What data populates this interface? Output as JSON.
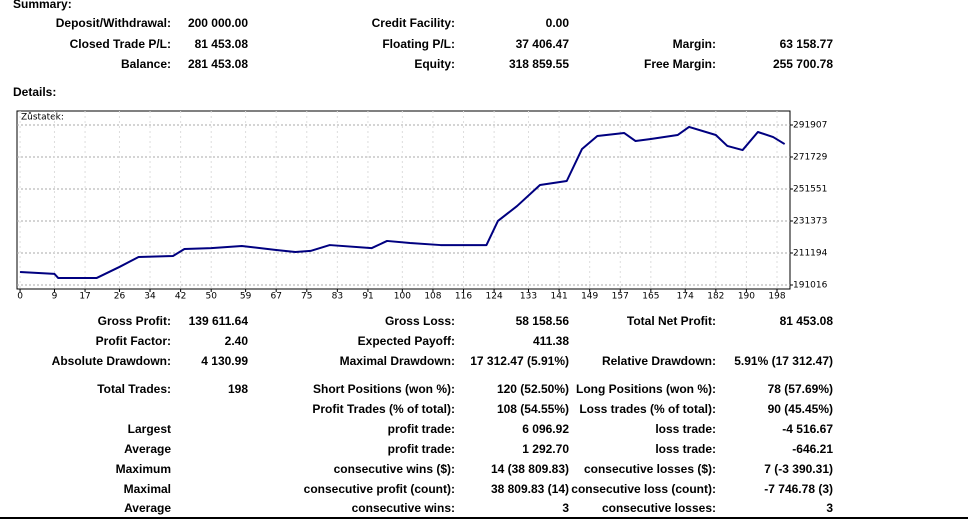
{
  "summary": {
    "title": "Summary:",
    "rows": [
      {
        "a": [
          "Deposit/Withdrawal:",
          "200 000.00"
        ],
        "b": [
          "Credit Facility:",
          "0.00"
        ]
      },
      {
        "a": [
          "Closed Trade P/L:",
          "81 453.08"
        ],
        "b": [
          "Floating P/L:",
          "37 406.47"
        ],
        "c": [
          "Margin:",
          "63 158.77"
        ]
      },
      {
        "a": [
          "Balance:",
          "281 453.08"
        ],
        "b": [
          "Equity:",
          "318 859.55"
        ],
        "c": [
          "Free Margin:",
          "255 700.78"
        ]
      }
    ]
  },
  "details": {
    "title": "Details:"
  },
  "chart_data": {
    "type": "line",
    "title": "Zůstatek:",
    "x": [
      0,
      9,
      10,
      20,
      26,
      31,
      40,
      43,
      50,
      58,
      67,
      72,
      76,
      81,
      92,
      96,
      102,
      110,
      122,
      125,
      130,
      136,
      143,
      147,
      151,
      158,
      161,
      165,
      172,
      175,
      182,
      185,
      189,
      193,
      197,
      200
    ],
    "series": [
      {
        "color": "#000080",
        "values": [
          199200,
          198000,
          195400,
          195400,
          202400,
          208700,
          209300,
          213700,
          214300,
          215600,
          213100,
          211800,
          212500,
          216200,
          214300,
          218800,
          217500,
          216200,
          216200,
          231400,
          240800,
          254100,
          256600,
          276800,
          285000,
          286900,
          281800,
          283100,
          285600,
          290700,
          285600,
          278700,
          276100,
          287500,
          284300,
          279900
        ]
      }
    ],
    "xlim": [
      -0.8,
      201.4
    ],
    "xticks": [
      0,
      9,
      17,
      26,
      34,
      42,
      50,
      59,
      67,
      75,
      83,
      91,
      100,
      108,
      116,
      124,
      133,
      141,
      149,
      157,
      165,
      174,
      182,
      190,
      198
    ],
    "ylim": [
      188494,
      300740
    ],
    "yticks": [
      191016,
      211194,
      231373,
      251551,
      271729,
      291907
    ],
    "grid": true
  },
  "stats": {
    "rows": [
      {
        "a": [
          "Gross Profit:",
          "139 611.64"
        ],
        "b": [
          "Gross Loss:",
          "58 158.56"
        ],
        "c": [
          "Total Net Profit:",
          "81 453.08"
        ]
      },
      {
        "a": [
          "Profit Factor:",
          "2.40"
        ],
        "b": [
          "Expected Payoff:",
          "411.38"
        ]
      },
      {
        "a": [
          "Absolute Drawdown:",
          "4 130.99"
        ],
        "b": [
          "Maximal Drawdown:",
          "17 312.47 (5.91%)"
        ],
        "c": [
          "Relative Drawdown:",
          "5.91% (17 312.47)"
        ]
      },
      {
        "a": [
          "Total Trades:",
          "198"
        ],
        "b": [
          "Short Positions (won %):",
          "120 (52.50%)"
        ],
        "c": [
          "Long Positions (won %):",
          "78 (57.69%)"
        ]
      },
      {
        "b": [
          "Profit Trades (% of total):",
          "108 (54.55%)"
        ],
        "c": [
          "Loss trades (% of total):",
          "90 (45.45%)"
        ]
      },
      {
        "a": [
          "Largest"
        ],
        "b": [
          "profit trade:",
          "6 096.92"
        ],
        "c": [
          "loss trade:",
          "-4 516.67"
        ]
      },
      {
        "a": [
          "Average"
        ],
        "b": [
          "profit trade:",
          "1 292.70"
        ],
        "c": [
          "loss trade:",
          "-646.21"
        ]
      },
      {
        "a": [
          "Maximum"
        ],
        "b": [
          "consecutive wins ($):",
          "14 (38 809.83)"
        ],
        "c": [
          "consecutive losses ($):",
          "7 (-3 390.31)"
        ]
      },
      {
        "a": [
          "Maximal"
        ],
        "b": [
          "consecutive profit (count):",
          "38 809.83 (14)"
        ],
        "c": [
          "consecutive loss (count):",
          "-7 746.78 (3)"
        ]
      },
      {
        "a": [
          "Average"
        ],
        "b": [
          "consecutive wins:",
          "3"
        ],
        "c": [
          "consecutive losses:",
          "3"
        ]
      }
    ]
  }
}
